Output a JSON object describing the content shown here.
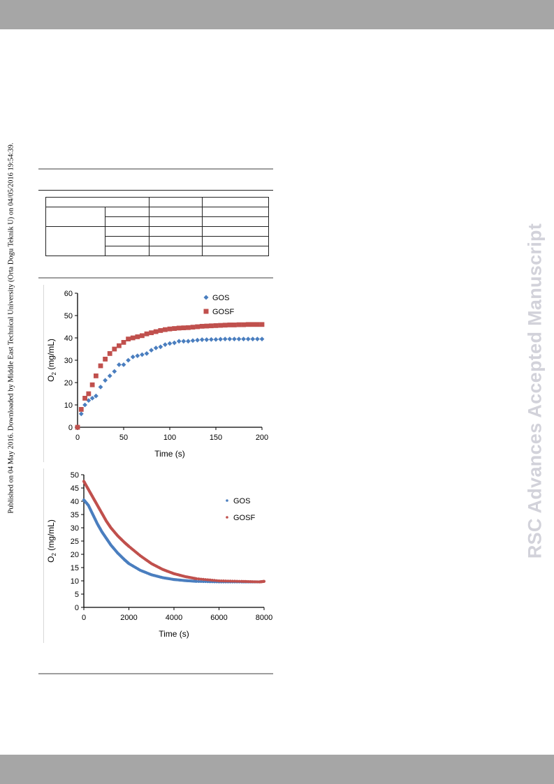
{
  "header_band": "",
  "side_note": "Published on 04 May 2016. Downloaded by Middle East Technical University (Orta Dogu Teknik U) on 04/05/2016 19:54:39.",
  "watermark": "RSC Advances Accepted Manuscript",
  "colors": {
    "gos": "#4a7ebf",
    "gosf": "#c0504d",
    "band": "#a6a6a6",
    "watermark": "#d2d2da"
  },
  "chart_data": [
    {
      "type": "scatter",
      "title": "",
      "xlabel": "Time (s)",
      "ylabel": "O2 (mg/mL)",
      "ylabel_main": "O",
      "ylabel_sub": "2",
      "ylabel_rest": " (mg/mL)",
      "xlim": [
        0,
        200
      ],
      "ylim": [
        0,
        60
      ],
      "xticks": [
        "0",
        "50",
        "100",
        "150",
        "200"
      ],
      "yticks": [
        "0",
        "10",
        "20",
        "30",
        "40",
        "50",
        "60"
      ],
      "legend_position": "top-right",
      "series": [
        {
          "name": "GOS",
          "marker": "diamond",
          "x": [
            0,
            4,
            8,
            12,
            16,
            20,
            25,
            30,
            35,
            40,
            45,
            50,
            55,
            60,
            65,
            70,
            75,
            80,
            85,
            90,
            95,
            100,
            105,
            110,
            115,
            120,
            125,
            130,
            135,
            140,
            145,
            150,
            155,
            160,
            165,
            170,
            175,
            180,
            185,
            190,
            195,
            200
          ],
          "y": [
            0,
            6,
            10,
            12,
            13,
            14,
            18,
            21,
            23,
            25,
            28,
            28,
            30,
            31.5,
            32,
            32.5,
            33,
            34.5,
            35.5,
            36,
            37,
            37.5,
            37.8,
            38.5,
            38.5,
            38.5,
            38.8,
            39,
            39.2,
            39.2,
            39.3,
            39.3,
            39.4,
            39.5,
            39.5,
            39.5,
            39.5,
            39.5,
            39.5,
            39.5,
            39.5,
            39.5
          ]
        },
        {
          "name": "GOSF",
          "marker": "square",
          "x": [
            0,
            4,
            8,
            12,
            16,
            20,
            25,
            30,
            35,
            40,
            45,
            50,
            55,
            60,
            65,
            70,
            75,
            80,
            85,
            90,
            95,
            100,
            105,
            110,
            115,
            120,
            125,
            130,
            135,
            140,
            145,
            150,
            155,
            160,
            165,
            170,
            175,
            180,
            185,
            190,
            195,
            200
          ],
          "y": [
            0,
            8,
            13,
            15,
            19,
            23,
            27.5,
            30.5,
            33,
            35,
            36.5,
            38,
            39.5,
            40,
            40.5,
            41,
            41.8,
            42.3,
            42.8,
            43.3,
            43.7,
            44,
            44.2,
            44.4,
            44.5,
            44.6,
            44.8,
            45,
            45.2,
            45.3,
            45.4,
            45.5,
            45.6,
            45.7,
            45.8,
            45.8,
            45.9,
            45.9,
            46,
            46,
            46,
            46
          ]
        }
      ]
    },
    {
      "type": "scatter",
      "title": "",
      "xlabel": "Time (s)",
      "ylabel": "O2 (mg/mL)",
      "ylabel_main": "O",
      "ylabel_sub": "2",
      "ylabel_rest": " (mg/mL)",
      "xlim": [
        0,
        8000
      ],
      "ylim": [
        0,
        50
      ],
      "xticks": [
        "0",
        "2000",
        "4000",
        "6000",
        "8000"
      ],
      "yticks": [
        "0",
        "5",
        "10",
        "15",
        "20",
        "25",
        "30",
        "35",
        "40",
        "45",
        "50"
      ],
      "legend_position": "top-right",
      "series": [
        {
          "name": "GOS",
          "marker": "dot",
          "x": [
            0,
            200,
            400,
            600,
            800,
            1000,
            1200,
            1500,
            1800,
            2000,
            2500,
            3000,
            3500,
            4000,
            4500,
            5000,
            6000,
            7000,
            7800
          ],
          "y": [
            40.5,
            38.5,
            35,
            31.5,
            28.5,
            26,
            23.5,
            20.5,
            18,
            16.5,
            14,
            12.3,
            11.2,
            10.5,
            10.1,
            9.8,
            9.6,
            9.6,
            9.6
          ]
        },
        {
          "name": "GOSF",
          "marker": "dot",
          "x": [
            0,
            200,
            400,
            600,
            800,
            1000,
            1200,
            1500,
            1800,
            2000,
            2500,
            3000,
            3500,
            4000,
            4500,
            5000,
            6000,
            7000,
            7800,
            8000
          ],
          "y": [
            47.5,
            44.5,
            41.5,
            38.5,
            35.5,
            32.5,
            30,
            27,
            24.5,
            23,
            19.5,
            16.5,
            14.3,
            12.7,
            11.6,
            10.8,
            10,
            9.8,
            9.6,
            9.8
          ]
        }
      ]
    }
  ]
}
